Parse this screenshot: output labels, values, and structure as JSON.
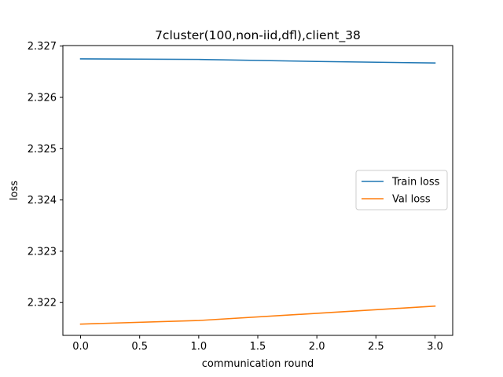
{
  "chart_data": {
    "type": "line",
    "title": "7cluster(100,non-iid,dfl),client_38",
    "xlabel": "communication round",
    "ylabel": "loss",
    "x": [
      0,
      1,
      2,
      3
    ],
    "xlim": [
      -0.15,
      3.15
    ],
    "ylim": [
      2.32136,
      2.32701
    ],
    "xticks": [
      0.0,
      0.5,
      1.0,
      1.5,
      2.0,
      2.5,
      3.0
    ],
    "xtick_labels": [
      "0.0",
      "0.5",
      "1.0",
      "1.5",
      "2.0",
      "2.5",
      "3.0"
    ],
    "yticks": [
      2.322,
      2.323,
      2.324,
      2.325,
      2.326,
      2.327
    ],
    "ytick_labels": [
      "2.322",
      "2.323",
      "2.324",
      "2.325",
      "2.326",
      "2.327"
    ],
    "grid": false,
    "legend_position": "center-right",
    "series": [
      {
        "name": "Train loss",
        "color": "#1f77b4",
        "values": [
          2.32675,
          2.32674,
          2.3267,
          2.32667
        ]
      },
      {
        "name": "Val loss",
        "color": "#ff7f0e",
        "values": [
          2.32158,
          2.32165,
          2.32179,
          2.32193
        ]
      }
    ]
  }
}
